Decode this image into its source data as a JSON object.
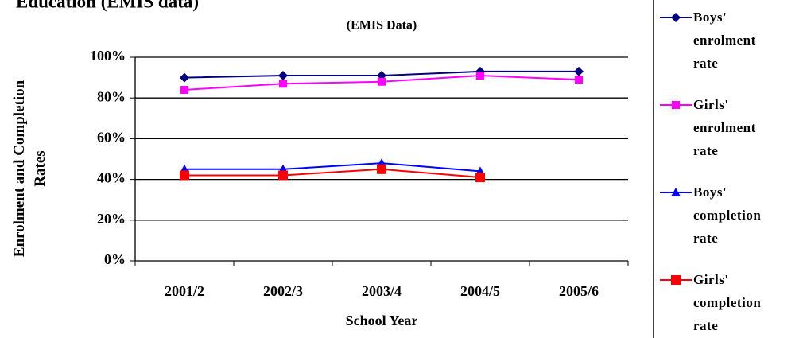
{
  "chart_data": {
    "type": "line",
    "title": "Education (EMIS data)",
    "subtitle": "(EMIS Data)",
    "x_label": "School Year",
    "y_label": "Enrolment and Completion Rates",
    "categories": [
      "2001/2",
      "2002/3",
      "2003/4",
      "2004/5",
      "2005/6"
    ],
    "series": [
      {
        "name": "Boys' enrolment rate",
        "color": "#000080",
        "marker": "diamond",
        "values": [
          90,
          91,
          91,
          93,
          93
        ]
      },
      {
        "name": "Girls' enrolment rate",
        "color": "#ff00ff",
        "marker": "square",
        "values": [
          84,
          87,
          88,
          91,
          89
        ]
      },
      {
        "name": "Boys' completion rate",
        "color": "#0000ff",
        "marker": "triangle",
        "values": [
          45,
          45,
          48,
          44,
          null
        ]
      },
      {
        "name": "Girls' completion rate",
        "color": "#ff0000",
        "marker": "square",
        "values": [
          42,
          42,
          45,
          41,
          null
        ]
      }
    ],
    "ylim": [
      0,
      100
    ],
    "yticks": [
      {
        "value": 0,
        "label": "0%"
      },
      {
        "value": 20,
        "label": "20%"
      },
      {
        "value": 40,
        "label": "40%"
      },
      {
        "value": 60,
        "label": "60%"
      },
      {
        "value": 80,
        "label": "80%"
      },
      {
        "value": 100,
        "label": "100%"
      }
    ],
    "grid": true,
    "legend": "right"
  }
}
